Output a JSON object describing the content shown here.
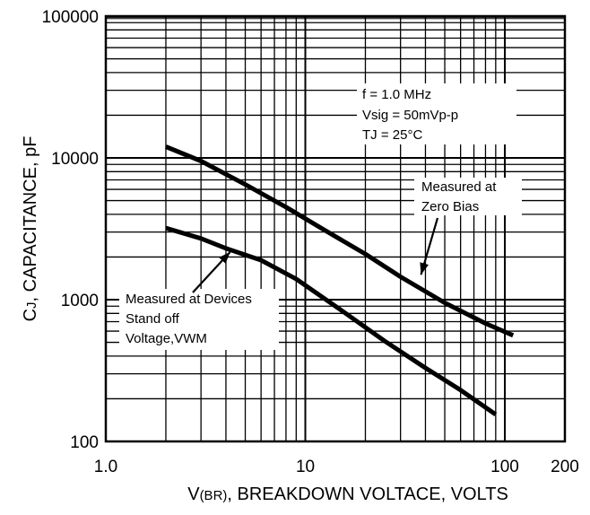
{
  "chart_data": {
    "type": "line",
    "title": "",
    "xlabel": "V(BR), BREAKDOWN VOLTACE, VOLTS",
    "xlabel_parts": {
      "pre": "V",
      "sub": "(BR)",
      "post": ", BREAKDOWN VOLTACE, VOLTS"
    },
    "ylabel": "CJ, CAPACITANCE, pF",
    "ylabel_parts": {
      "pre": "C",
      "sub": "J",
      "post": ", CAPACITANCE, pF"
    },
    "xscale": "log",
    "yscale": "log",
    "xlim": [
      1.0,
      200
    ],
    "ylim": [
      100,
      100000
    ],
    "grid": true,
    "x_ticks": [
      {
        "value": 1.0,
        "label": "1.0"
      },
      {
        "value": 10,
        "label": "10"
      },
      {
        "value": 100,
        "label": "100"
      },
      {
        "value": 200,
        "label": "200"
      }
    ],
    "y_ticks": [
      {
        "value": 100,
        "label": "100"
      },
      {
        "value": 1000,
        "label": "1000"
      },
      {
        "value": 10000,
        "label": "10000"
      },
      {
        "value": 100000,
        "label": "100000"
      }
    ],
    "series": [
      {
        "x": [
          2,
          3,
          5,
          8,
          12,
          20,
          30,
          50,
          80,
          110
        ],
        "values": [
          12000,
          9500,
          6500,
          4500,
          3200,
          2100,
          1450,
          950,
          680,
          560
        ]
      },
      {
        "x": [
          2,
          3,
          4,
          6,
          9,
          15,
          25,
          40,
          60,
          90
        ],
        "values": [
          3200,
          2700,
          2300,
          1900,
          1400,
          850,
          510,
          330,
          230,
          155
        ]
      }
    ],
    "annotations": {
      "conditions": [
        "f = 1.0 MHz",
        "Vsig = 50mVp-p",
        "TJ = 25°C"
      ],
      "zero_bias": {
        "lines": [
          "Measured at",
          "Zero Bias"
        ],
        "points_to": {
          "x": 38,
          "y": 1500
        }
      },
      "standoff": {
        "lines": [
          "Measured at Devices",
          "Stand off",
          "Voltage,VWM"
        ],
        "points_to": {
          "x": 4.2,
          "y": 2300
        }
      }
    }
  }
}
